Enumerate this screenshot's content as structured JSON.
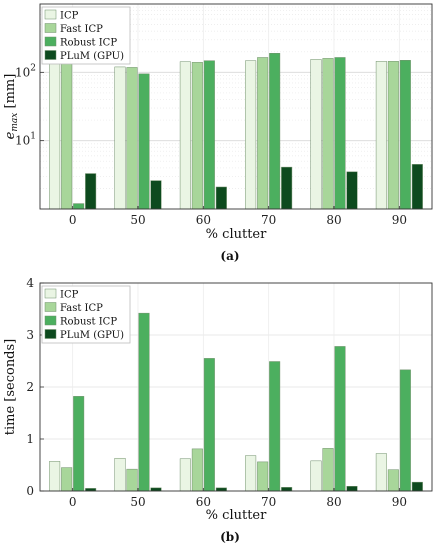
{
  "chart_data": [
    {
      "type": "bar",
      "panel": "(a)",
      "categories": [
        "0",
        "50",
        "60",
        "70",
        "80",
        "90"
      ],
      "series": [
        {
          "name": "ICP",
          "color": "#eaf5e4",
          "values": [
            140,
            120,
            143,
            148,
            155,
            145
          ]
        },
        {
          "name": "Fast ICP",
          "color": "#a8d69a",
          "values": [
            140,
            118,
            140,
            165,
            160,
            145
          ]
        },
        {
          "name": "Robust ICP",
          "color": "#4caf5f",
          "values": [
            1.2,
            95,
            148,
            190,
            165,
            150
          ]
        },
        {
          "name": "PLuM (GPU)",
          "color": "#0d4a1e",
          "values": [
            3.3,
            2.6,
            2.1,
            4.1,
            3.5,
            4.5
          ]
        }
      ],
      "xlabel": "% clutter",
      "ylabel": "e_max [mm]",
      "ylabel_main": "e",
      "ylabel_sub": "max",
      "ylabel_unit": " [mm]",
      "yscale": "log",
      "ylim": [
        1,
        1000
      ],
      "yticks": [
        {
          "value": 10,
          "base": "10",
          "exp": "1"
        },
        {
          "value": 100,
          "base": "10",
          "exp": "2"
        }
      ],
      "grid": true,
      "legend": "top-left",
      "caption": "(a)"
    },
    {
      "type": "bar",
      "panel": "(b)",
      "categories": [
        "0",
        "50",
        "60",
        "70",
        "80",
        "90"
      ],
      "series": [
        {
          "name": "ICP",
          "color": "#eaf5e4",
          "values": [
            0.57,
            0.63,
            0.62,
            0.68,
            0.58,
            0.72
          ]
        },
        {
          "name": "Fast ICP",
          "color": "#a8d69a",
          "values": [
            0.45,
            0.42,
            0.81,
            0.56,
            0.82,
            0.41
          ]
        },
        {
          "name": "Robust ICP",
          "color": "#4caf5f",
          "values": [
            1.82,
            3.42,
            2.55,
            2.49,
            2.78,
            2.33
          ]
        },
        {
          "name": "PLuM (GPU)",
          "color": "#0d4a1e",
          "values": [
            0.05,
            0.06,
            0.06,
            0.07,
            0.09,
            0.17
          ]
        }
      ],
      "xlabel": "% clutter",
      "ylabel": "time [seconds]",
      "yscale": "linear",
      "ylim": [
        0,
        4
      ],
      "yticks": [
        0,
        1,
        2,
        3,
        4
      ],
      "grid": true,
      "legend": "top-left",
      "caption": "(b)"
    }
  ]
}
